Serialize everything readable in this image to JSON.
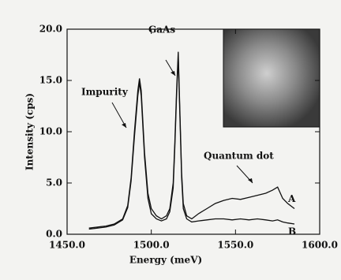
{
  "chart_data": {
    "type": "line",
    "xlabel": "Energy (meV)",
    "ylabel": "Intensity (cps)",
    "x": [
      1463,
      1468,
      1473,
      1478,
      1483,
      1486,
      1488,
      1490,
      1492,
      1493,
      1494,
      1496,
      1498,
      1500,
      1503,
      1506,
      1509,
      1511,
      1513,
      1514,
      1515,
      1516,
      1517,
      1518,
      1519,
      1521,
      1524,
      1528,
      1533,
      1538,
      1543,
      1548,
      1553,
      1558,
      1563,
      1568,
      1572,
      1575,
      1578,
      1581,
      1585
    ],
    "series": [
      {
        "name": "A",
        "color": "#111111",
        "values": [
          0.6,
          0.7,
          0.8,
          1.0,
          1.5,
          2.8,
          5.5,
          10,
          14,
          15.2,
          14,
          8,
          4,
          2.5,
          1.8,
          1.5,
          1.8,
          2.5,
          5,
          9,
          14,
          17.8,
          12,
          6,
          3,
          1.8,
          1.5,
          2.0,
          2.5,
          3.0,
          3.3,
          3.5,
          3.4,
          3.6,
          3.8,
          4.0,
          4.3,
          4.6,
          3.5,
          3.0,
          2.5
        ]
      },
      {
        "name": "B",
        "color": "#111111",
        "values": [
          0.5,
          0.6,
          0.7,
          0.9,
          1.4,
          2.6,
          5.2,
          9.5,
          13.5,
          14.8,
          13.5,
          7.5,
          3.5,
          2.0,
          1.5,
          1.3,
          1.5,
          2.2,
          4.5,
          8.5,
          13.5,
          17.2,
          11.5,
          5.5,
          2.5,
          1.5,
          1.2,
          1.3,
          1.4,
          1.5,
          1.5,
          1.4,
          1.5,
          1.4,
          1.5,
          1.4,
          1.3,
          1.4,
          1.2,
          1.1,
          1.0
        ]
      }
    ],
    "xlim": [
      1450,
      1600
    ],
    "xticks": [
      {
        "value": 1450,
        "label": "1450.0"
      },
      {
        "value": 1500,
        "label": "1500.0"
      },
      {
        "value": 1550,
        "label": "1550.0"
      },
      {
        "value": 1600,
        "label": "1600.0"
      }
    ],
    "ylim": [
      0,
      20
    ],
    "yticks": [
      {
        "value": 0,
        "label": "0.0"
      },
      {
        "value": 5,
        "label": "5.0"
      },
      {
        "value": 10,
        "label": "10.0"
      },
      {
        "value": 15,
        "label": "15.0"
      },
      {
        "value": 20,
        "label": "20.0"
      }
    ],
    "annotations": [
      "Impurity",
      "GaAs",
      "Quantum dot"
    ]
  }
}
